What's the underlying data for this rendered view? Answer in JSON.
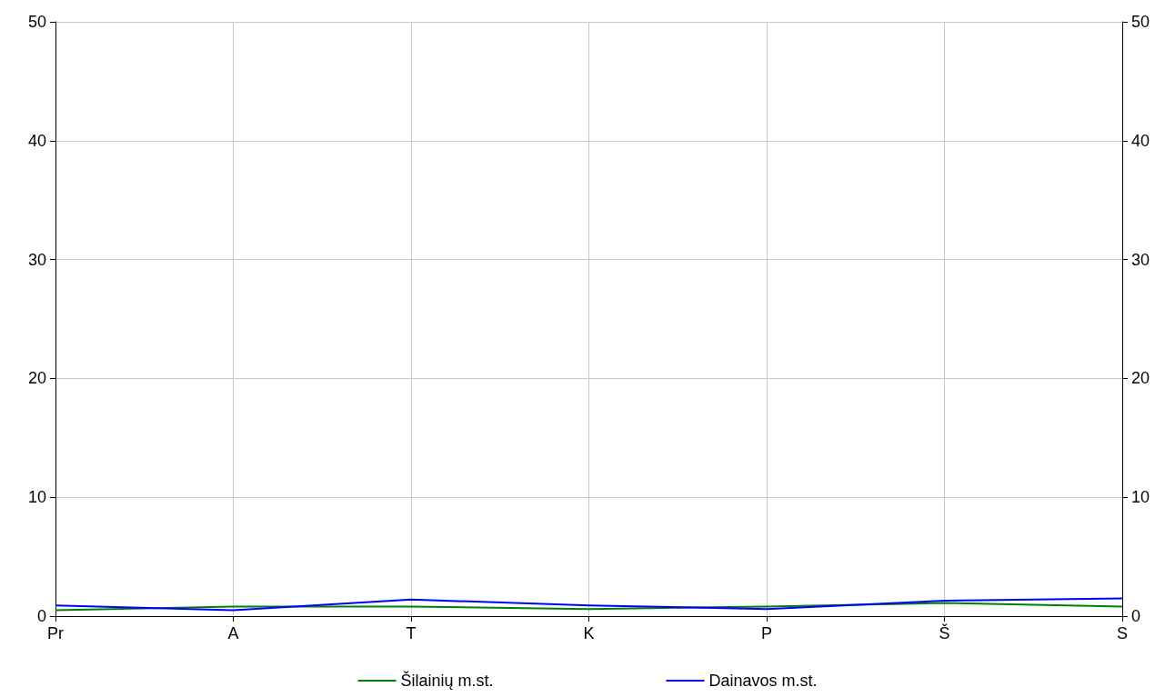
{
  "chart_data": {
    "type": "line",
    "categories": [
      "Pr",
      "A",
      "T",
      "K",
      "P",
      "Š",
      "S"
    ],
    "series": [
      {
        "name": "Šilainių m.st.",
        "color": "#008000",
        "values": [
          0.5,
          0.8,
          0.8,
          0.6,
          0.8,
          1.1,
          0.8
        ]
      },
      {
        "name": "Dainavos m.st.",
        "color": "#0000ff",
        "values": [
          0.9,
          0.5,
          1.4,
          0.9,
          0.6,
          1.3,
          1.5
        ]
      }
    ],
    "ylim": [
      0,
      50
    ],
    "yticks": [
      0,
      10,
      20,
      30,
      40,
      50
    ],
    "y2lim": [
      0,
      50
    ],
    "y2ticks": [
      0,
      10,
      20,
      30,
      40,
      50
    ],
    "grid": true,
    "legend": "bottom",
    "marker": "none",
    "line_style": "solid"
  }
}
